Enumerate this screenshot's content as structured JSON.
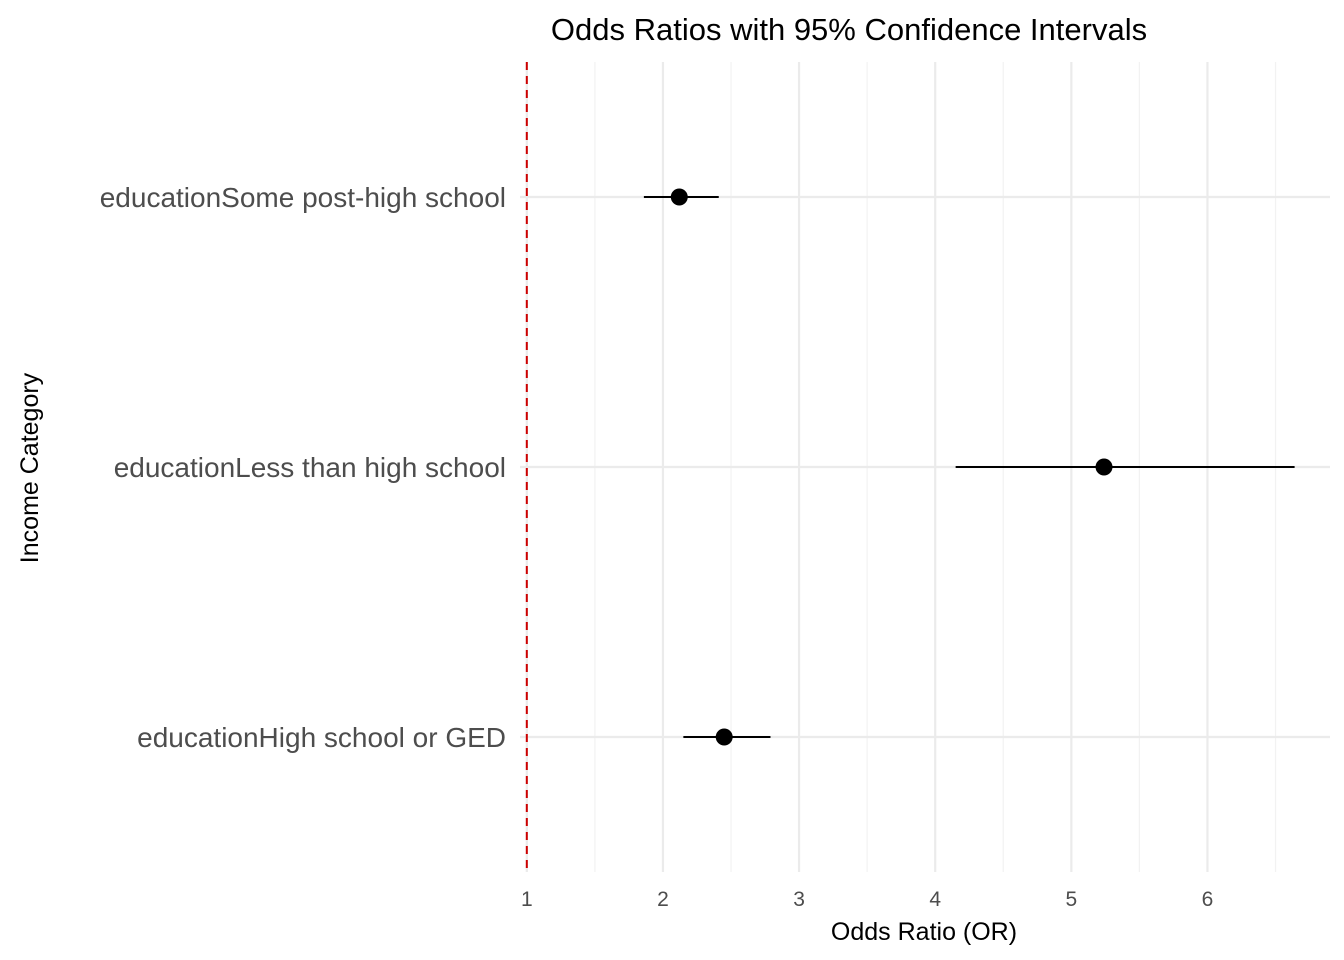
{
  "chart_data": {
    "type": "scatter",
    "title": "Odds Ratios with 95% Confidence Intervals",
    "xlabel": "Odds Ratio (OR)",
    "ylabel": "Income Category",
    "xlim": [
      0.95,
      6.9
    ],
    "x_ticks": [
      1,
      2,
      3,
      4,
      5,
      6
    ],
    "x_tick_labels": [
      "1",
      "2",
      "3",
      "4",
      "5",
      "6"
    ],
    "reference_line": {
      "x": 1,
      "color": "#cc0000",
      "style": "dashed"
    },
    "grid": true,
    "categories": [
      "educationHigh school or GED",
      "educationLess than high school",
      "educationSome post-high school"
    ],
    "points": [
      {
        "category": "educationHigh school or GED",
        "or": 2.45,
        "ci_low": 2.15,
        "ci_high": 2.79
      },
      {
        "category": "educationLess than high school",
        "or": 5.24,
        "ci_low": 4.15,
        "ci_high": 6.64
      },
      {
        "category": "educationSome post-high school",
        "or": 2.12,
        "ci_low": 1.86,
        "ci_high": 2.41
      }
    ],
    "point_color": "#000000"
  }
}
